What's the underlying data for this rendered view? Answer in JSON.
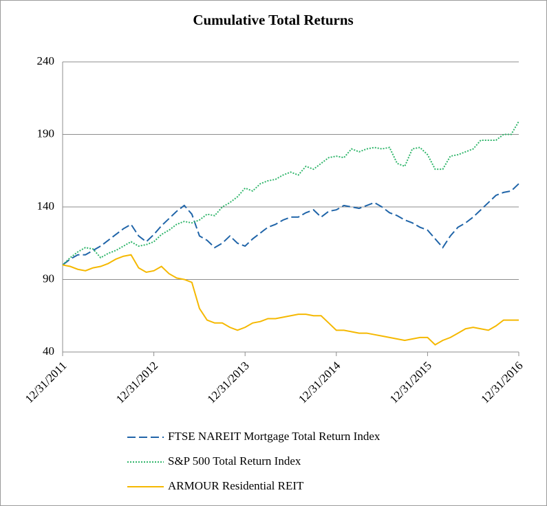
{
  "chart_data": {
    "type": "line",
    "title": "Cumulative Total Returns",
    "categories": [
      "12/31/2011",
      null,
      null,
      null,
      null,
      null,
      null,
      null,
      null,
      null,
      null,
      null,
      "12/31/2012",
      null,
      null,
      null,
      null,
      null,
      null,
      null,
      null,
      null,
      null,
      null,
      "12/31/2013",
      null,
      null,
      null,
      null,
      null,
      null,
      null,
      null,
      null,
      null,
      null,
      "12/31/2014",
      null,
      null,
      null,
      null,
      null,
      null,
      null,
      null,
      null,
      null,
      null,
      "12/31/2015",
      null,
      null,
      null,
      null,
      null,
      null,
      null,
      null,
      null,
      null,
      null,
      "12/31/2016"
    ],
    "series": [
      {
        "name": "FTSE NAREIT Mortgage Total Return Index",
        "color": "#1f64a8",
        "style": "dashed",
        "values": [
          100,
          104,
          107,
          107,
          110,
          113,
          117,
          121,
          125,
          128,
          120,
          116,
          121,
          127,
          132,
          137,
          141,
          135,
          120,
          117,
          112,
          115,
          120,
          115,
          113,
          118,
          122,
          126,
          128,
          131,
          133,
          133,
          136,
          138,
          133,
          137,
          138,
          141,
          140,
          139,
          141,
          143,
          140,
          136,
          134,
          131,
          129,
          126,
          124,
          118,
          112,
          120,
          126,
          129,
          133,
          138,
          143,
          148,
          150,
          151,
          156
        ]
      },
      {
        "name": "S&P 500 Total Return Index",
        "color": "#2fb56a",
        "style": "dotted",
        "values": [
          100,
          105,
          109,
          112,
          111,
          105,
          108,
          110,
          113,
          116,
          113,
          114,
          116,
          121,
          124,
          128,
          130,
          129,
          131,
          135,
          134,
          140,
          143,
          147,
          153,
          151,
          156,
          158,
          159,
          162,
          164,
          162,
          168,
          166,
          170,
          174,
          175,
          174,
          180,
          178,
          180,
          181,
          180,
          181,
          170,
          168,
          180,
          181,
          176,
          166,
          166,
          175,
          176,
          178,
          180,
          186,
          186,
          186,
          190,
          190,
          199
        ]
      },
      {
        "name": "ARMOUR Residential REIT",
        "color": "#f5b800",
        "style": "solid",
        "values": [
          100,
          99,
          97,
          96,
          98,
          99,
          101,
          104,
          106,
          107,
          98,
          95,
          96,
          99,
          94,
          91,
          90,
          88,
          70,
          62,
          60,
          60,
          57,
          55,
          57,
          60,
          61,
          63,
          63,
          64,
          65,
          66,
          66,
          65,
          65,
          60,
          55,
          55,
          54,
          53,
          53,
          52,
          51,
          50,
          49,
          48,
          49,
          50,
          50,
          45,
          48,
          50,
          53,
          56,
          57,
          56,
          55,
          58,
          62,
          62,
          62
        ]
      }
    ],
    "ylim": [
      40,
      240
    ],
    "yticks": [
      40,
      90,
      140,
      190,
      240
    ],
    "grid": true
  }
}
